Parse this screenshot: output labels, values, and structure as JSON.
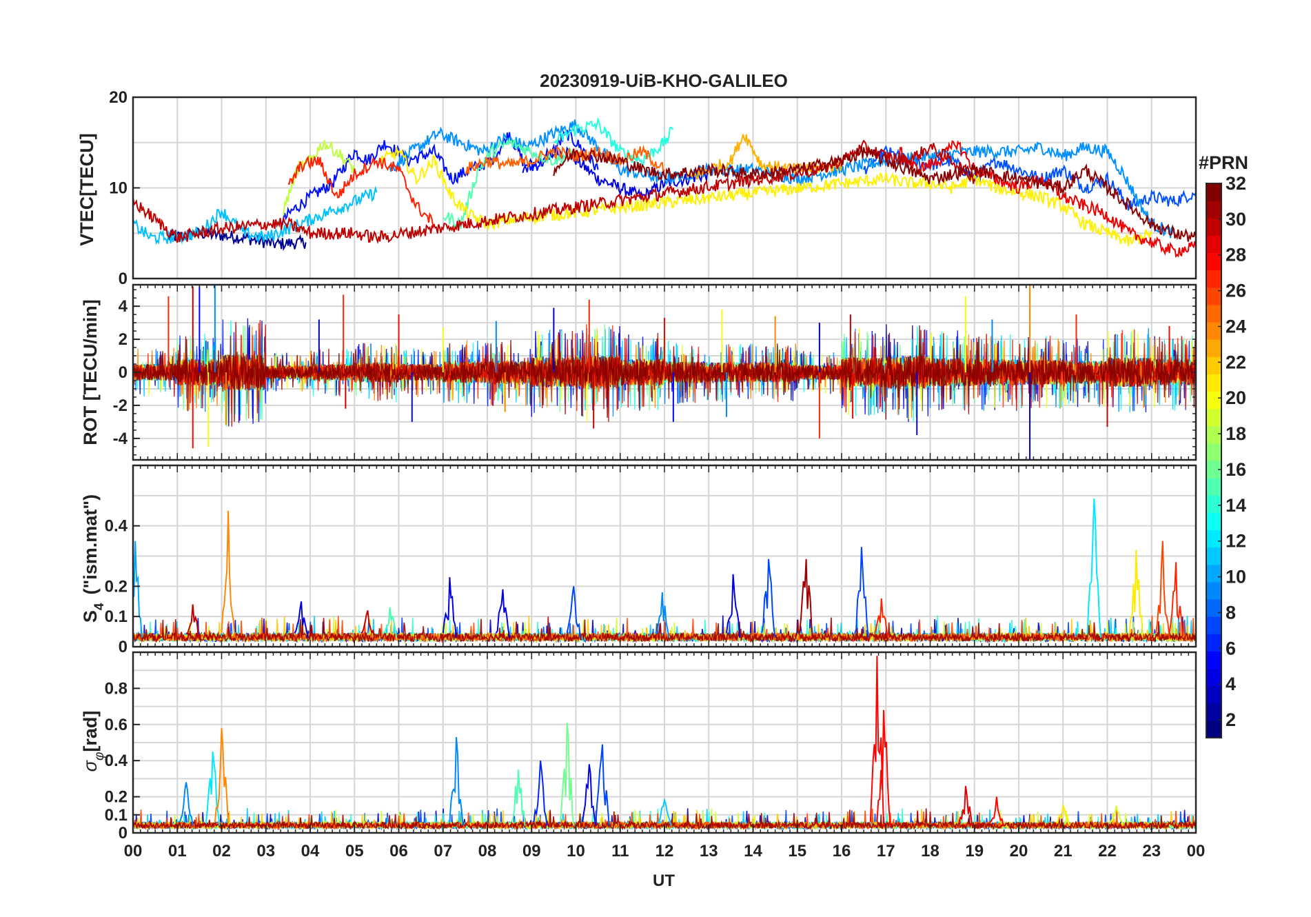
{
  "chart_data": [
    {
      "type": "line",
      "panel": "vtec",
      "title": "20230919-UiB-KHO-GALILEO",
      "ylabel": "VTEC[TECU]",
      "ylim": [
        0,
        20
      ],
      "yticks": [
        "0",
        "10",
        "20"
      ],
      "ytick_values": [
        0,
        10,
        20
      ],
      "gridlines": [
        0,
        5,
        10,
        15,
        20
      ],
      "series": [
        {
          "name": "PRN 2",
          "prn": 2,
          "color": "#00008f",
          "x": [
            0.8,
            1.5,
            2.5,
            3.2,
            3.9
          ],
          "y": [
            4.5,
            5,
            4.5,
            3.8,
            4
          ]
        },
        {
          "name": "PRN 4",
          "prn": 4,
          "color": "#0000df",
          "x": [
            8.8,
            9.3,
            9.8,
            10.5,
            11,
            11.5,
            12,
            12.5,
            13
          ],
          "y": [
            12,
            13.5,
            14,
            11,
            10,
            9,
            10.5,
            11,
            11.5
          ]
        },
        {
          "name": "PRN 5",
          "prn": 5,
          "color": "#0010ff",
          "x": [
            3.3,
            3.6,
            4,
            4.5,
            5,
            5.3,
            5.7,
            6.2,
            6.8,
            7.2,
            7.6,
            8.1,
            8.5,
            8.9,
            9.3,
            9.8,
            10.2,
            10.5
          ],
          "y": [
            6,
            7.5,
            9,
            10.5,
            14,
            13,
            15,
            13,
            14,
            11,
            12,
            13,
            16,
            12,
            13,
            16,
            14,
            12
          ]
        },
        {
          "name": "PRN 7",
          "prn": 7,
          "color": "#0050ff",
          "x": [
            16.5,
            17,
            17.5,
            18,
            18.5,
            19,
            19.5,
            20,
            20.5,
            21,
            21.5,
            22,
            22.5,
            23,
            23.5,
            24
          ],
          "y": [
            12,
            14,
            13,
            12.5,
            13,
            11,
            13,
            12,
            11,
            12,
            10,
            11,
            8,
            9,
            8.5,
            9.5
          ]
        },
        {
          "name": "PRN 9",
          "prn": 9,
          "color": "#0090ff",
          "x": [
            5.8,
            6.3,
            6.9,
            7.4,
            7.9,
            8.4,
            8.9,
            9.5,
            10,
            10.4,
            11,
            12,
            13,
            14,
            15,
            16,
            17,
            18,
            19,
            20,
            20.5,
            21,
            21.5,
            22,
            22.3,
            23,
            23.5
          ],
          "y": [
            12,
            14,
            16,
            15,
            14,
            15.5,
            14.5,
            16,
            17,
            15,
            12,
            11,
            12,
            12,
            11,
            12,
            13,
            13.5,
            14,
            14,
            14.5,
            13.5,
            14.5,
            14,
            12,
            6,
            5
          ]
        },
        {
          "name": "PRN 11",
          "prn": 11,
          "color": "#00c0ff",
          "x": [
            0,
            0.4,
            0.9,
            1.5,
            2,
            2.5,
            3,
            3.5,
            4,
            4.5,
            5,
            5.5
          ],
          "y": [
            6,
            4.5,
            4.5,
            5,
            7.5,
            5,
            4.5,
            5.5,
            6.5,
            7.5,
            8.5,
            9.5
          ]
        },
        {
          "name": "PRN 13",
          "prn": 13,
          "color": "#20ffdf",
          "x": [
            9.5,
            10,
            10.5,
            11,
            11.5,
            12,
            12.2
          ],
          "y": [
            15,
            16.5,
            17,
            14,
            13,
            15,
            16.5
          ]
        },
        {
          "name": "PRN 15",
          "prn": 15,
          "color": "#50ffaf",
          "x": [
            7,
            7.4,
            7.8,
            8.1,
            8.5,
            9,
            9.5,
            10
          ],
          "y": [
            7,
            6,
            12,
            14,
            15,
            14,
            13,
            14
          ]
        },
        {
          "name": "PRN 19",
          "prn": 19,
          "color": "#bfff40",
          "x": [
            3.4,
            3.7,
            4,
            4.3,
            4.6,
            5
          ],
          "y": [
            7.5,
            12,
            13,
            15,
            14,
            12
          ]
        },
        {
          "name": "PRN 21",
          "prn": 21,
          "color": "#ffef00",
          "x": [
            5.6,
            6,
            6.4,
            6.8,
            7.2,
            7.6,
            8,
            8.5,
            17,
            17.5,
            18,
            18.5,
            19,
            19.5,
            20,
            20.5,
            21,
            21.5,
            22,
            22.5,
            23
          ],
          "y": [
            13,
            14,
            11,
            13,
            9,
            7,
            6,
            6.5,
            11,
            10.5,
            10.5,
            10,
            11,
            10,
            9.5,
            9,
            8,
            6,
            5,
            4,
            5
          ]
        },
        {
          "name": "PRN 23",
          "prn": 23,
          "color": "#ffaf00",
          "x": [
            12.5,
            13,
            13.5,
            13.8,
            14.2,
            15,
            16
          ],
          "y": [
            11,
            12,
            13,
            16,
            12.5,
            12,
            12.5
          ]
        },
        {
          "name": "PRN 25",
          "prn": 25,
          "color": "#ff6000",
          "x": [
            7.5,
            8,
            8.5,
            9,
            9.5,
            10,
            10.5,
            11,
            11.5,
            12
          ],
          "y": [
            12,
            13,
            12.5,
            13,
            14,
            13.5,
            14,
            13,
            14,
            12
          ]
        },
        {
          "name": "PRN 27",
          "prn": 27,
          "color": "#ff2000",
          "x": [
            3.5,
            3.8,
            4.2,
            4.6,
            5,
            5.5,
            6,
            6.4,
            6.8
          ],
          "y": [
            10,
            12.5,
            13,
            9,
            11.5,
            13,
            12,
            8,
            6
          ]
        },
        {
          "name": "PRN 28",
          "prn": 28,
          "color": "#ef0000",
          "x": [
            17.3,
            17.7,
            18.2,
            18.6,
            19,
            19.5,
            20,
            20.5,
            21,
            21.5,
            22,
            22.5,
            23,
            23.5,
            24
          ],
          "y": [
            14,
            12,
            13,
            15,
            12,
            11,
            10,
            11,
            9,
            8,
            7,
            5,
            4,
            3,
            3.5
          ]
        },
        {
          "name": "PRN 30",
          "prn": 30,
          "color": "#bf0000",
          "x": [
            0,
            1,
            2,
            3,
            3.5,
            4,
            4.5,
            5,
            5.5,
            15.5,
            16,
            16.5,
            17,
            17.5,
            18,
            18.5,
            19
          ],
          "y": [
            8.5,
            4.5,
            5.5,
            6,
            6,
            5,
            5,
            5,
            4.5,
            12,
            13,
            14.5,
            13.5,
            13,
            14.5,
            13,
            11
          ]
        },
        {
          "name": "PRN 32",
          "prn": 32,
          "color": "#8a0000",
          "x": [
            9.5,
            10,
            10.5,
            11,
            11.5,
            12,
            13,
            14,
            15,
            15.5,
            16,
            16.5,
            17,
            18,
            19,
            20,
            21,
            21.5,
            22,
            22.5,
            23,
            23.5,
            24
          ],
          "y": [
            12,
            14,
            13.5,
            13,
            12,
            11.5,
            12,
            11.5,
            12,
            12.5,
            13,
            14,
            13,
            11,
            12,
            11,
            10,
            12,
            10,
            8,
            6,
            5,
            4.5
          ]
        }
      ]
    },
    {
      "type": "line",
      "panel": "rot",
      "ylabel": "ROT [TECU/min]",
      "ylim": [
        -5.3,
        5.3
      ],
      "yticks": [
        "-4",
        "-2",
        "0",
        "2",
        "4"
      ],
      "ytick_values": [
        -4,
        -2,
        0,
        2,
        4
      ],
      "gridlines": [
        -4,
        -3,
        -2,
        -1,
        0,
        1,
        2,
        3,
        4
      ],
      "noise_amplitude_by_hour": [
        1.0,
        1.6,
        2.2,
        0.8,
        1.0,
        1.2,
        1.0,
        1.3,
        1.4,
        1.8,
        2.0,
        1.6,
        1.3,
        1.2,
        1.2,
        0.9,
        1.8,
        2.0,
        1.7,
        1.6,
        1.5,
        1.4,
        1.8,
        1.6,
        1.3
      ],
      "spikes": [
        {
          "x": 0.8,
          "y": 4.6
        },
        {
          "x": 1.35,
          "y": 5.2
        },
        {
          "x": 1.35,
          "y": -4.6
        },
        {
          "x": 1.5,
          "y": 5.2
        },
        {
          "x": 1.7,
          "y": -4.5
        },
        {
          "x": 1.85,
          "y": 5.3
        },
        {
          "x": 2.1,
          "y": -3.2
        },
        {
          "x": 4.2,
          "y": 3.2
        },
        {
          "x": 4.75,
          "y": 4.7
        },
        {
          "x": 4.8,
          "y": -2.2
        },
        {
          "x": 6.0,
          "y": 3.5
        },
        {
          "x": 6.3,
          "y": -3.0
        },
        {
          "x": 7.0,
          "y": 2.7
        },
        {
          "x": 8.2,
          "y": 3.1
        },
        {
          "x": 8.4,
          "y": -2.4
        },
        {
          "x": 9.5,
          "y": 3.9
        },
        {
          "x": 10.3,
          "y": 4.4
        },
        {
          "x": 10.4,
          "y": -3.4
        },
        {
          "x": 12.0,
          "y": 3.3
        },
        {
          "x": 12.2,
          "y": -3.0
        },
        {
          "x": 13.3,
          "y": 3.8
        },
        {
          "x": 13.4,
          "y": -2.7
        },
        {
          "x": 14.5,
          "y": 3.4
        },
        {
          "x": 15.5,
          "y": 3.0
        },
        {
          "x": 15.5,
          "y": -4.0
        },
        {
          "x": 16.2,
          "y": 3.5
        },
        {
          "x": 16.25,
          "y": -2.8
        },
        {
          "x": 17.7,
          "y": -3.8
        },
        {
          "x": 18.8,
          "y": 4.6
        },
        {
          "x": 19.4,
          "y": 3.2
        },
        {
          "x": 20.25,
          "y": 5.3
        },
        {
          "x": 20.25,
          "y": -5.3
        },
        {
          "x": 21.3,
          "y": 3.5
        },
        {
          "x": 22.0,
          "y": -3.3
        },
        {
          "x": 23.4,
          "y": 2.8
        }
      ]
    },
    {
      "type": "line",
      "panel": "s4",
      "ylabel": "S4 (\"ism.mat\")",
      "ylim": [
        0,
        0.6
      ],
      "yticks": [
        "0",
        "0.1",
        "0.2",
        "0.4"
      ],
      "ytick_values": [
        0,
        0.1,
        0.2,
        0.4
      ],
      "gridlines": [
        0,
        0.1,
        0.2,
        0.3,
        0.4,
        0.5
      ],
      "baseline": 0.03,
      "peaks": [
        {
          "x": 0.05,
          "y": 0.35,
          "prn": 10
        },
        {
          "x": 1.35,
          "y": 0.14,
          "prn": 30
        },
        {
          "x": 2.15,
          "y": 0.45,
          "prn": 24
        },
        {
          "x": 3.8,
          "y": 0.15,
          "prn": 4
        },
        {
          "x": 5.3,
          "y": 0.12,
          "prn": 30
        },
        {
          "x": 5.8,
          "y": 0.13,
          "prn": 15
        },
        {
          "x": 7.15,
          "y": 0.23,
          "prn": 4
        },
        {
          "x": 8.35,
          "y": 0.19,
          "prn": 4
        },
        {
          "x": 9.95,
          "y": 0.2,
          "prn": 7
        },
        {
          "x": 11.95,
          "y": 0.18,
          "prn": 9
        },
        {
          "x": 13.55,
          "y": 0.24,
          "prn": 4
        },
        {
          "x": 14.35,
          "y": 0.29,
          "prn": 7
        },
        {
          "x": 15.2,
          "y": 0.29,
          "prn": 31
        },
        {
          "x": 16.45,
          "y": 0.33,
          "prn": 7
        },
        {
          "x": 16.9,
          "y": 0.16,
          "prn": 27
        },
        {
          "x": 21.7,
          "y": 0.49,
          "prn": 12
        },
        {
          "x": 22.65,
          "y": 0.32,
          "prn": 21
        },
        {
          "x": 23.25,
          "y": 0.35,
          "prn": 26
        },
        {
          "x": 23.55,
          "y": 0.28,
          "prn": 27
        }
      ]
    },
    {
      "type": "line",
      "panel": "sigma_phi",
      "ylabel": "σφ[rad]",
      "ylim": [
        0,
        1
      ],
      "yticks": [
        "0",
        "0.1",
        "0.2",
        "0.4",
        "0.6",
        "0.8"
      ],
      "ytick_values": [
        0,
        0.1,
        0.2,
        0.4,
        0.6,
        0.8
      ],
      "gridlines": [
        0,
        0.1,
        0.2,
        0.3,
        0.4,
        0.5,
        0.6,
        0.7,
        0.8,
        0.9,
        1.0
      ],
      "baseline": 0.04,
      "peaks": [
        {
          "x": 1.8,
          "y": 0.45,
          "prn": 12
        },
        {
          "x": 2.0,
          "y": 0.58,
          "prn": 24
        },
        {
          "x": 1.2,
          "y": 0.28,
          "prn": 9
        },
        {
          "x": 7.3,
          "y": 0.53,
          "prn": 9
        },
        {
          "x": 8.7,
          "y": 0.35,
          "prn": 15
        },
        {
          "x": 9.2,
          "y": 0.4,
          "prn": 6
        },
        {
          "x": 9.8,
          "y": 0.61,
          "prn": 16
        },
        {
          "x": 10.3,
          "y": 0.38,
          "prn": 4
        },
        {
          "x": 10.6,
          "y": 0.49,
          "prn": 7
        },
        {
          "x": 12.0,
          "y": 0.18,
          "prn": 11
        },
        {
          "x": 16.8,
          "y": 0.98,
          "prn": 28
        },
        {
          "x": 16.95,
          "y": 0.68,
          "prn": 28
        },
        {
          "x": 18.8,
          "y": 0.26,
          "prn": 29
        },
        {
          "x": 19.5,
          "y": 0.2,
          "prn": 28
        },
        {
          "x": 21.0,
          "y": 0.15,
          "prn": 21
        },
        {
          "x": 22.2,
          "y": 0.15,
          "prn": 19
        }
      ]
    }
  ],
  "figure": {
    "title": "20230919-UiB-KHO-GALILEO",
    "xlabel": "UT",
    "xlim": [
      0,
      24
    ],
    "xticks": [
      "00",
      "01",
      "02",
      "03",
      "04",
      "05",
      "06",
      "07",
      "08",
      "09",
      "10",
      "11",
      "12",
      "13",
      "14",
      "15",
      "16",
      "17",
      "18",
      "19",
      "20",
      "21",
      "22",
      "23",
      "00"
    ]
  },
  "colorbar": {
    "title": "#PRN",
    "range": [
      1,
      32
    ],
    "ticks": [
      "2",
      "4",
      "6",
      "8",
      "10",
      "12",
      "14",
      "16",
      "18",
      "20",
      "22",
      "24",
      "26",
      "28",
      "30",
      "32"
    ],
    "tick_values": [
      2,
      4,
      6,
      8,
      10,
      12,
      14,
      16,
      18,
      20,
      22,
      24,
      26,
      28,
      30,
      32
    ],
    "colormap": "jet",
    "levels": 32
  },
  "labels": {
    "vtec_ylabel": "VTEC[TECU]",
    "rot_ylabel": "ROT [TECU/min]",
    "s4_sym": "S",
    "s4_sub": "4",
    "s4_rest": "(\"ism.mat\")",
    "sig_sym": "σ",
    "sig_sub": "φ",
    "sig_rest": "[rad]"
  }
}
